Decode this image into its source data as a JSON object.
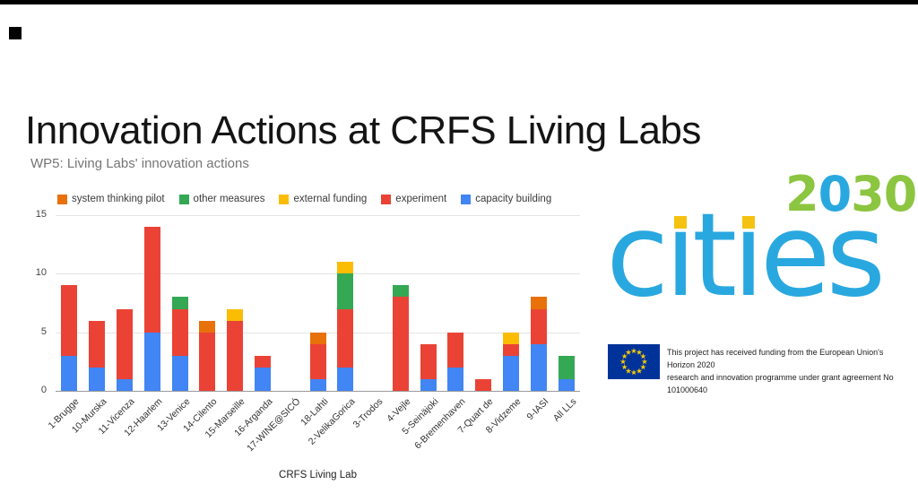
{
  "slide": {
    "title": "Innovation Actions at CRFS Living Labs"
  },
  "chart_data": {
    "type": "bar",
    "stacked": true,
    "title": "WP5: Living Labs' innovation actions",
    "xlabel": "CRFS Living Lab",
    "ylabel": "",
    "ylim": [
      0,
      15
    ],
    "yticks": [
      0,
      5,
      10,
      15
    ],
    "grid": true,
    "legend_position": "top",
    "categories": [
      "1-Brugge",
      "10-Murska",
      "11-Vicenza",
      "12-Haarlem",
      "13-Venice",
      "14-Cilento",
      "15-Marseille",
      "16-Arganda",
      "17-WINE@SICÓ",
      "18-Lahti",
      "2-VelikaGorica",
      "3-Trodos",
      "4-Vejle",
      "5-Seinäjoki",
      "6-Bremenhaven",
      "7-Quart de",
      "8-Vidzeme",
      "9-IASI",
      "All LLs"
    ],
    "series": [
      {
        "name": "capacity building",
        "color": "#4285F4",
        "values": [
          3,
          2,
          1,
          5,
          3,
          0,
          0,
          2,
          0,
          1,
          2,
          0,
          0,
          1,
          2,
          0,
          3,
          4,
          1
        ]
      },
      {
        "name": "experiment",
        "color": "#EA4335",
        "values": [
          6,
          4,
          6,
          9,
          4,
          5,
          6,
          1,
          0,
          3,
          5,
          0,
          8,
          3,
          3,
          1,
          1,
          3,
          0
        ]
      },
      {
        "name": "other measures",
        "color": "#34A853",
        "values": [
          0,
          0,
          0,
          0,
          1,
          0,
          0,
          0,
          0,
          0,
          3,
          0,
          1,
          0,
          0,
          0,
          0,
          0,
          2
        ]
      },
      {
        "name": "external funding",
        "color": "#FBBC04",
        "values": [
          0,
          0,
          0,
          0,
          0,
          0,
          1,
          0,
          0,
          0,
          1,
          0,
          0,
          0,
          0,
          0,
          1,
          0,
          0
        ]
      },
      {
        "name": "system thinking pilot",
        "color": "#E8710A",
        "values": [
          0,
          0,
          0,
          0,
          0,
          1,
          0,
          0,
          0,
          1,
          0,
          0,
          0,
          0,
          0,
          0,
          0,
          1,
          0
        ]
      }
    ],
    "legend": [
      {
        "label": "system thinking pilot",
        "color": "#E8710A"
      },
      {
        "label": "other measures",
        "color": "#34A853"
      },
      {
        "label": "external funding",
        "color": "#FBBC04"
      },
      {
        "label": "experiment",
        "color": "#EA4335"
      },
      {
        "label": "capacity building",
        "color": "#4285F4"
      }
    ]
  },
  "logo": {
    "word": "cities",
    "word_color": "#29A8E0",
    "dot_color": "#F5C211",
    "year": [
      {
        "char": "2",
        "color": "#8CC540"
      },
      {
        "char": "0",
        "color": "#29A8E0"
      },
      {
        "char": "3",
        "color": "#8CC540"
      },
      {
        "char": "0",
        "color": "#8CC540"
      }
    ]
  },
  "funding": {
    "lines": [
      "This project has received funding from the European  Union's Horizon 2020",
      "research and innovation programme under grant agreement No 101000640"
    ]
  }
}
